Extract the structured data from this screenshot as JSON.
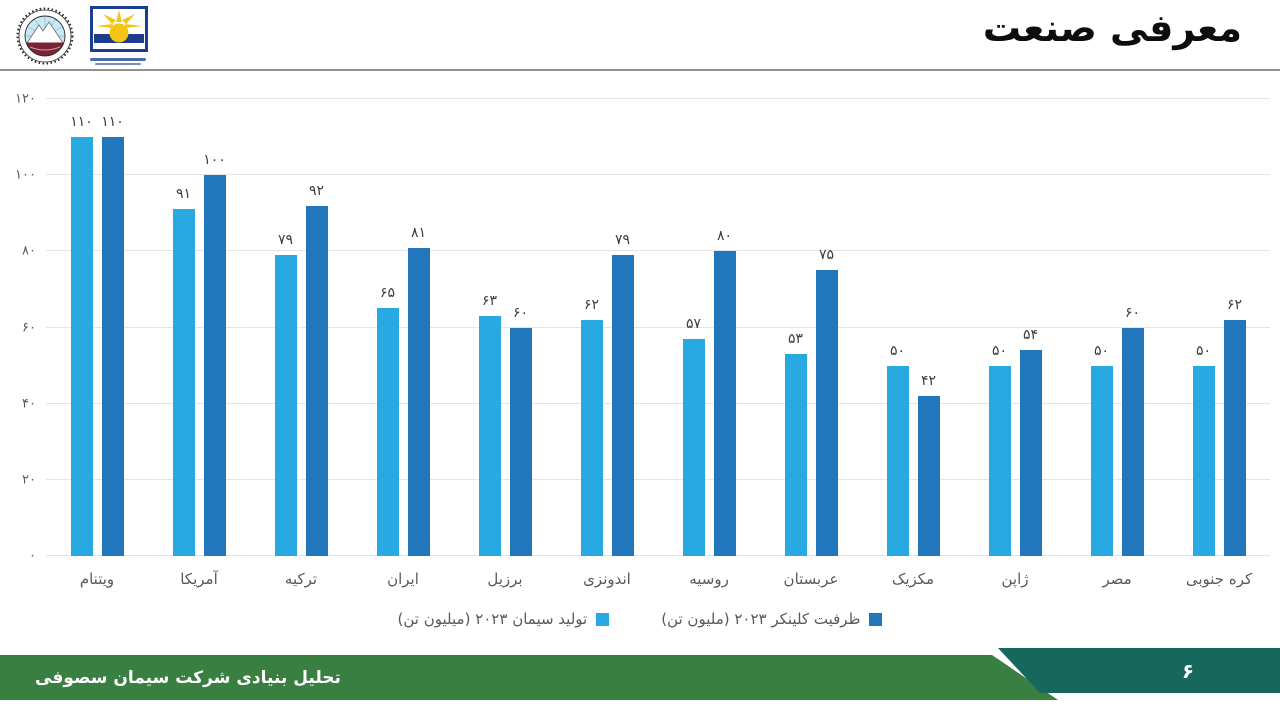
{
  "header": {
    "title": "معرفی صنعت",
    "logos": [
      "mountain-seal-logo",
      "sunrise-logo"
    ]
  },
  "chart_data": {
    "type": "bar",
    "title": "",
    "xlabel": "",
    "ylabel": "",
    "ylim": [
      0,
      120
    ],
    "yticks": [
      0,
      20,
      40,
      60,
      80,
      100,
      120
    ],
    "ytick_labels_fa": [
      "۰",
      "۲۰",
      "۴۰",
      "۶۰",
      "۸۰",
      "۱۰۰",
      "۱۲۰"
    ],
    "grid": true,
    "legend_position": "bottom-center",
    "categories": [
      "ویتنام",
      "آمریکا",
      "ترکیه",
      "ایران",
      "برزیل",
      "اندونزی",
      "روسیه",
      "عربستان",
      "مکزیک",
      "ژاپن",
      "مصر",
      "کره جنوبی"
    ],
    "series": [
      {
        "name": "تولید سیمان ۲۰۲۳ (میلیون تن)",
        "color": "#29A9E1",
        "values": [
          110,
          91,
          79,
          65,
          63,
          62,
          57,
          53,
          50,
          50,
          50,
          50
        ],
        "labels_fa": [
          "۱۱۰",
          "۹۱",
          "۷۹",
          "۶۵",
          "۶۳",
          "۶۲",
          "۵۷",
          "۵۳",
          "۵۰",
          "۵۰",
          "۵۰",
          "۵۰"
        ]
      },
      {
        "name": "ظرفیت کلینکر ۲۰۲۳ (ملیون تن)",
        "color": "#2176BC",
        "values": [
          110,
          100,
          92,
          81,
          60,
          79,
          80,
          75,
          42,
          54,
          60,
          62
        ],
        "labels_fa": [
          "۱۱۰",
          "۱۰۰",
          "۹۲",
          "۸۱",
          "۶۰",
          "۷۹",
          "۸۰",
          "۷۵",
          "۴۲",
          "۵۴",
          "۶۰",
          "۶۲"
        ]
      }
    ]
  },
  "footer": {
    "text": "تحلیل بنیادی شرکت سیمان سصوفی",
    "page_number_fa": "۶",
    "green_color": "#3A7F42",
    "teal_color": "#17685C"
  }
}
